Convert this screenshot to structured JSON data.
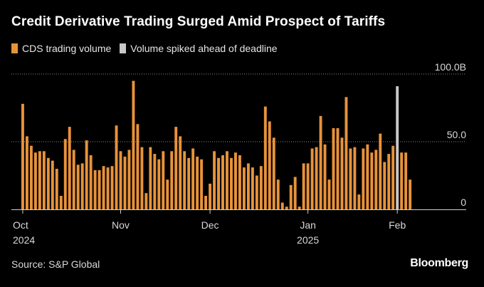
{
  "title": "Credit Derivative Trading Surged Amid Prospect of Tariffs",
  "legend": {
    "items": [
      {
        "label": "CDS trading volume",
        "color": "#e8933a"
      },
      {
        "label": "Volume spiked ahead of deadline",
        "color": "#c8c8c8"
      }
    ]
  },
  "source": "Source: S&P Global",
  "brand": "Bloomberg",
  "chart_data": {
    "type": "bar",
    "series": [
      {
        "name": "CDS trading volume",
        "color": "#e8933a",
        "values": [
          78,
          54,
          47,
          42,
          43,
          43,
          38,
          36,
          30,
          10,
          52,
          61,
          44,
          33,
          34,
          51,
          40,
          29,
          29,
          32,
          31,
          32,
          62,
          43,
          39,
          44,
          95,
          63,
          46,
          12,
          46,
          41,
          37,
          43,
          22,
          43,
          61,
          54,
          43,
          38,
          45,
          39,
          37,
          10,
          19,
          43,
          38,
          40,
          43,
          38,
          42,
          40,
          31,
          34,
          31,
          25,
          32,
          76,
          65,
          53,
          22,
          5,
          2,
          18,
          24,
          2,
          34,
          34,
          45,
          46,
          69,
          48,
          22,
          60,
          60,
          53,
          83,
          45,
          46,
          11,
          45,
          48,
          42,
          44,
          56,
          35,
          41,
          47,
          91,
          42,
          42,
          22
        ]
      }
    ],
    "highlight": {
      "name": "Volume spiked ahead of deadline",
      "index": 88,
      "color": "#c8c8c8"
    },
    "x_ticks": [
      {
        "label": "Oct",
        "sublabel": "2024",
        "index": 0
      },
      {
        "label": "Nov",
        "sublabel": "",
        "index": 23
      },
      {
        "label": "Dec",
        "sublabel": "",
        "index": 44
      },
      {
        "label": "Jan",
        "sublabel": "2025",
        "index": 67
      },
      {
        "label": "Feb",
        "sublabel": "",
        "index": 88
      }
    ],
    "y_ticks": [
      {
        "value": 0,
        "label": "0"
      },
      {
        "value": 50,
        "label": "50.0"
      },
      {
        "value": 100,
        "label": "100.0B"
      }
    ],
    "ylim": [
      0,
      100
    ],
    "xlabel": "",
    "ylabel": ""
  }
}
